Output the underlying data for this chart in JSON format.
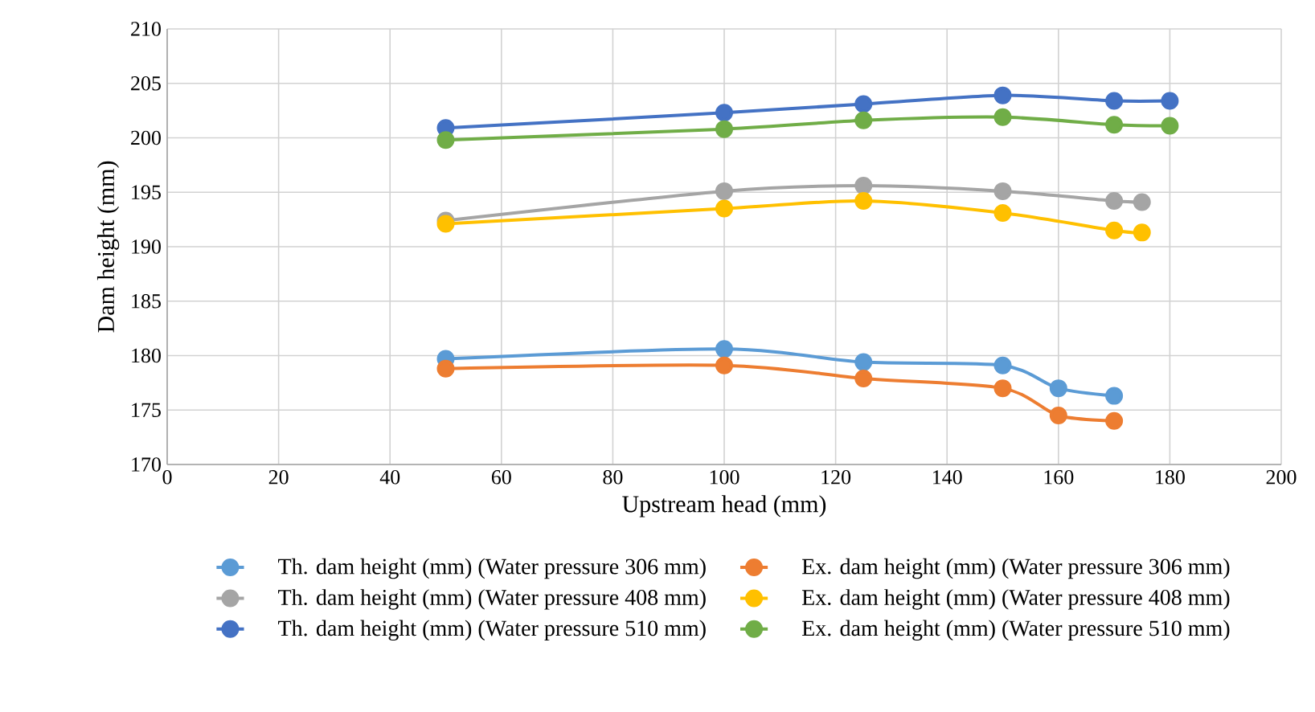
{
  "chart_data": {
    "type": "line",
    "xlabel": "Upstream head (mm)",
    "ylabel": "Dam height  (mm)",
    "xlim": [
      0,
      200
    ],
    "xticks": [
      0,
      20,
      40,
      60,
      80,
      100,
      120,
      140,
      160,
      180,
      200
    ],
    "ylim": [
      170,
      210
    ],
    "yticks": [
      170,
      175,
      180,
      185,
      190,
      195,
      200,
      205,
      210
    ],
    "grid": true,
    "legend": "bottom",
    "marker": "circle",
    "line_style": "solid",
    "series": [
      {
        "name": "Th. dam height (mm) (Water pressure 306 mm)",
        "color": "#5b9bd5",
        "x": [
          50,
          100,
          125,
          150,
          160,
          170
        ],
        "values": [
          179.7,
          180.6,
          179.4,
          179.1,
          177.0,
          176.3
        ]
      },
      {
        "name": "Ex. dam height (mm) (Water pressure 306 mm)",
        "color": "#ed7d31",
        "x": [
          50,
          100,
          125,
          150,
          160,
          170
        ],
        "values": [
          178.8,
          179.1,
          177.9,
          177.0,
          174.5,
          174.0
        ]
      },
      {
        "name": "Th. dam height (mm) (Water pressure 408 mm)",
        "color": "#a5a5a5",
        "x": [
          50,
          100,
          125,
          150,
          170,
          175
        ],
        "values": [
          192.4,
          195.1,
          195.6,
          195.1,
          194.2,
          194.1
        ]
      },
      {
        "name": "Ex. dam height (mm) (Water pressure 408 mm)",
        "color": "#ffc000",
        "x": [
          50,
          100,
          125,
          150,
          170,
          175
        ],
        "values": [
          192.1,
          193.5,
          194.2,
          193.1,
          191.5,
          191.3
        ]
      },
      {
        "name": "Th. dam height (mm) (Water pressure 510 mm)",
        "color": "#4472c4",
        "x": [
          50,
          100,
          125,
          150,
          170,
          180
        ],
        "values": [
          200.9,
          202.3,
          203.1,
          203.9,
          203.4,
          203.4
        ]
      },
      {
        "name": "Ex. dam height (mm) (Water pressure 510 mm)",
        "color": "#70ad47",
        "x": [
          50,
          100,
          125,
          150,
          170,
          180
        ],
        "values": [
          199.8,
          200.8,
          201.6,
          201.9,
          201.2,
          201.1
        ]
      }
    ]
  }
}
